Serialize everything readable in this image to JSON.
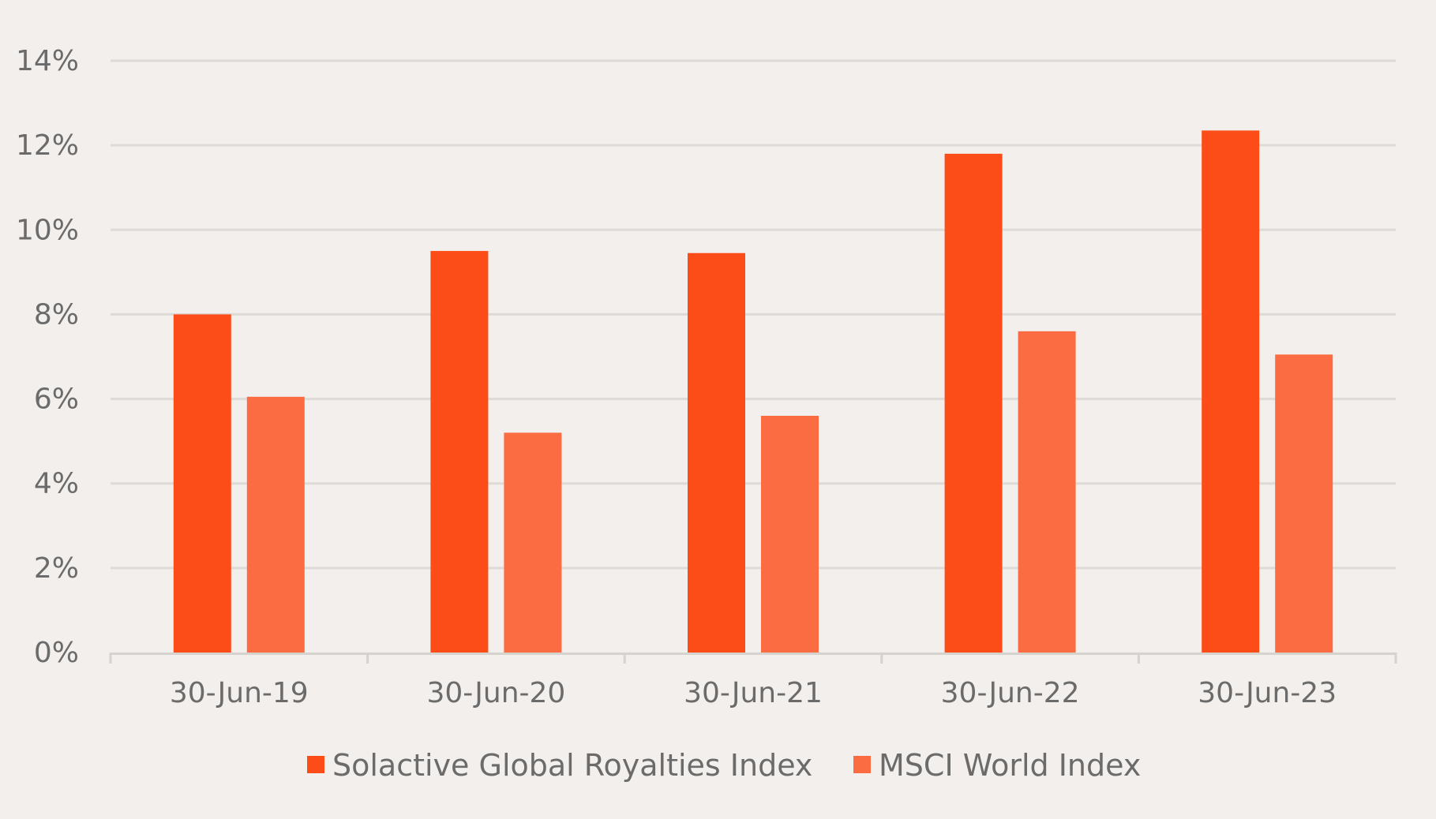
{
  "chart_data": {
    "type": "bar",
    "title": "",
    "xlabel": "",
    "ylabel": "",
    "categories": [
      "30-Jun-19",
      "30-Jun-20",
      "30-Jun-21",
      "30-Jun-22",
      "30-Jun-23"
    ],
    "series": [
      {
        "name": "Solactive Global Royalties Index",
        "color": "#fc4c17",
        "values": [
          8.0,
          9.5,
          9.45,
          11.8,
          12.35
        ]
      },
      {
        "name": "MSCI World Index",
        "color": "#fb6c42",
        "values": [
          6.05,
          5.2,
          5.6,
          7.6,
          7.05
        ]
      }
    ],
    "ylim": [
      0,
      14
    ],
    "ytick_step": 2,
    "y_ticks": [
      "0%",
      "2%",
      "4%",
      "6%",
      "8%",
      "10%",
      "12%",
      "14%"
    ],
    "grid": true,
    "legend_position": "bottom"
  }
}
